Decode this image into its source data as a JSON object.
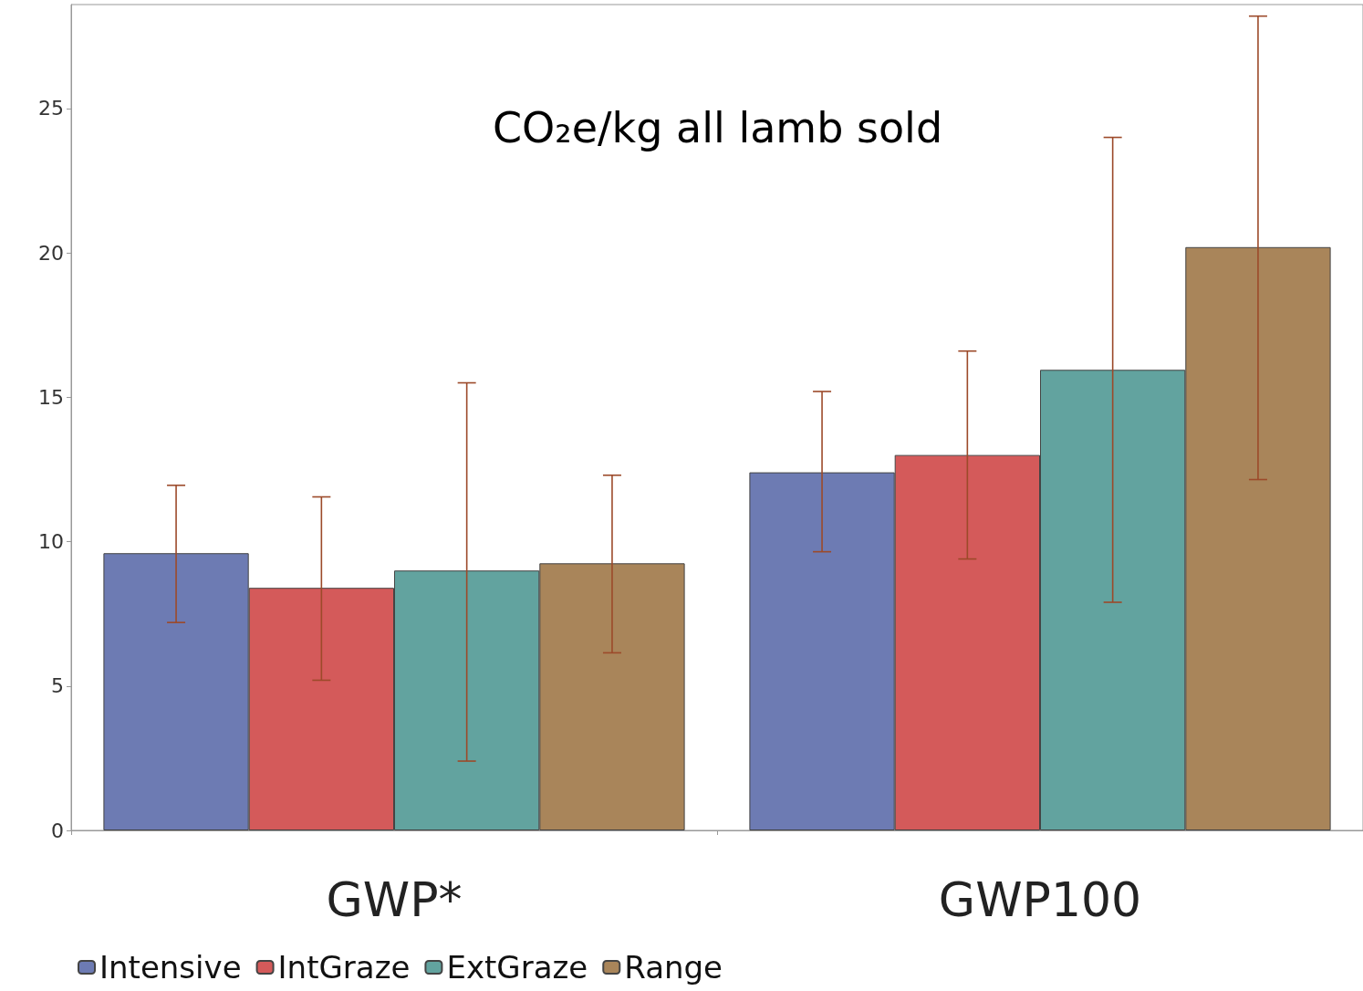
{
  "chart_data": {
    "type": "bar",
    "title": "CO₂e/kg all lamb sold",
    "categories": [
      "GWP*",
      "GWP100"
    ],
    "series": [
      {
        "name": "Intensive",
        "color": "#6d7bb3",
        "values": [
          9.6,
          12.4
        ],
        "errors": [
          [
            7.2,
            11.95
          ],
          [
            9.65,
            15.2
          ]
        ]
      },
      {
        "name": "IntGraze",
        "color": "#d45a5a",
        "values": [
          8.4,
          13.0
        ],
        "errors": [
          [
            5.2,
            11.55
          ],
          [
            9.4,
            16.6
          ]
        ]
      },
      {
        "name": "ExtGraze",
        "color": "#62a39f",
        "values": [
          9.0,
          15.95
        ],
        "errors": [
          [
            2.4,
            15.5
          ],
          [
            7.9,
            24.0
          ]
        ]
      },
      {
        "name": "Range",
        "color": "#a9855a",
        "values": [
          9.25,
          20.2
        ],
        "errors": [
          [
            6.15,
            12.3
          ],
          [
            12.15,
            28.2
          ]
        ]
      }
    ],
    "ylim": [
      0,
      28.6
    ],
    "yticks": [
      0,
      5,
      10,
      15,
      20,
      25
    ],
    "grid": false,
    "legend": "bottom left"
  }
}
